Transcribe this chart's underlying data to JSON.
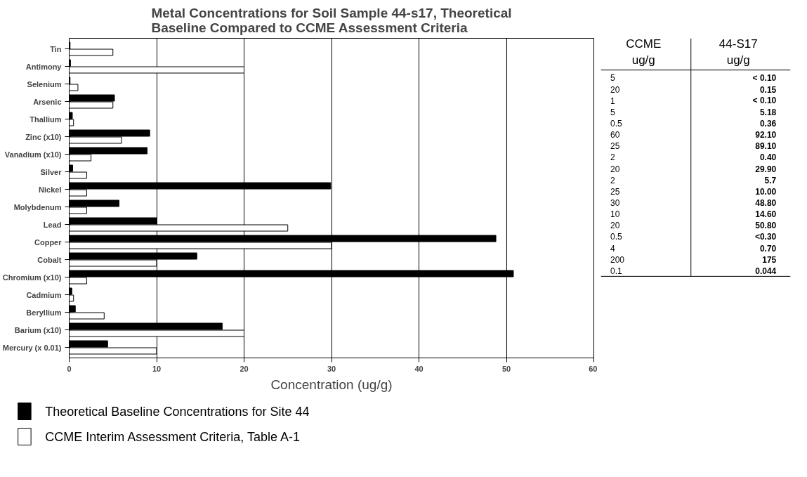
{
  "chart_data": [
    {
      "type": "bar",
      "orientation": "horizontal",
      "title": "Metal Concentrations for Soil Sample 44-s17, Theoretical Baseline Compared to CCME Assessment Criteria",
      "xlabel": "Concentration (ug/g)",
      "categories": [
        "Tin",
        "Antimony",
        "Selenium",
        "Arsenic",
        "Thallium",
        "Zinc (x10)",
        "Vanadium (x10)",
        "Silver",
        "Nickel",
        "Molybdenum",
        "Lead",
        "Copper",
        "Cobalt",
        "Chromium (x10)",
        "Cadmium",
        "Beryllium",
        "Barium (x10)",
        "Mercury (x 0.01)"
      ],
      "series": [
        {
          "name": "Theoretical Baseline Concentrations for Site 44",
          "color": "#000000",
          "values": [
            0.1,
            0.15,
            0.1,
            5.18,
            0.36,
            9.21,
            8.91,
            0.4,
            29.9,
            5.7,
            10,
            48.8,
            14.6,
            50.8,
            0.3,
            0.7,
            17.5,
            4.4
          ]
        },
        {
          "name": "CCME Interim Assessment Criteria, Table A-1",
          "color": "#ffffff",
          "values": [
            5,
            20,
            1,
            5,
            0.5,
            6,
            2.5,
            2,
            2,
            2,
            25,
            30,
            10,
            2,
            0.5,
            4,
            20,
            10
          ]
        }
      ],
      "xlim": [
        0,
        60
      ],
      "xticks": [
        0,
        10,
        20,
        30,
        40,
        50,
        60
      ],
      "grid": "x",
      "legend": "bottom"
    },
    {
      "type": "other",
      "categories": [
        "CCME ug/g",
        "44-S17 ug/g"
      ],
      "cell_labels": [
        [
          "5",
          "< 0.10"
        ],
        [
          "20",
          "0.15"
        ],
        [
          "1",
          "< 0.10"
        ],
        [
          "5",
          "5.18"
        ],
        [
          "0.5",
          "0.36"
        ],
        [
          "60",
          "92.10"
        ],
        [
          "25",
          "89.10"
        ],
        [
          "2",
          "0.40"
        ],
        [
          "20",
          "29.90"
        ],
        [
          "2",
          "5.7"
        ],
        [
          "25",
          "10.00"
        ],
        [
          "30",
          "48.80"
        ],
        [
          "10",
          "14.60"
        ],
        [
          "20",
          "50.80"
        ],
        [
          "0.5",
          "<0.30"
        ],
        [
          "4",
          "0.70"
        ],
        [
          "200",
          "175"
        ],
        [
          "0.1",
          "0.044"
        ]
      ]
    }
  ]
}
